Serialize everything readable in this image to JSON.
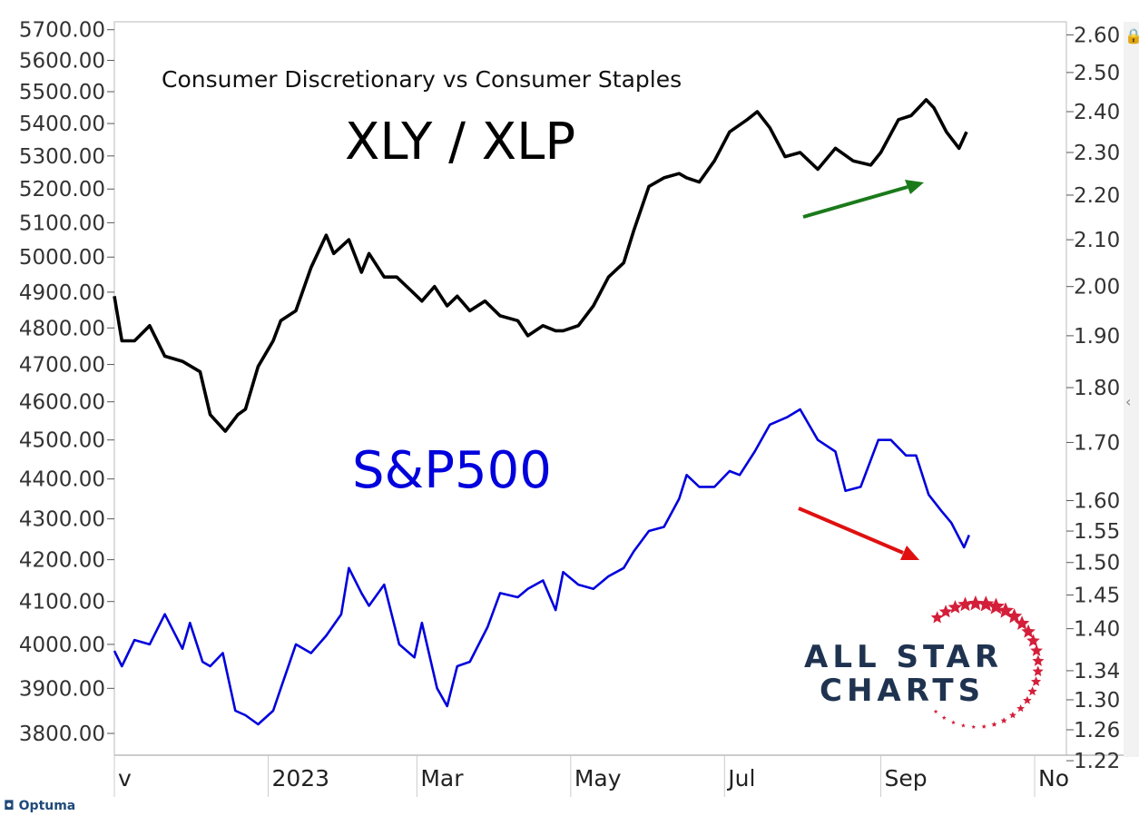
{
  "chart_data": {
    "type": "line",
    "title": "XLY / XLP",
    "subtitle": "Consumer Discretionary vs Consumer Staples",
    "x_ticks": [
      "v",
      "2023",
      "Mar",
      "May",
      "Jul",
      "Sep",
      "No"
    ],
    "xlim": [
      "2022-11-01",
      "2023-11-01"
    ],
    "left_axis": {
      "ticks": [
        "5700.00",
        "5600.00",
        "5500.00",
        "5400.00",
        "5300.00",
        "5200.00",
        "5100.00",
        "5000.00",
        "4900.00",
        "4800.00",
        "4700.00",
        "4600.00",
        "4500.00",
        "4400.00",
        "4300.00",
        "4200.00",
        "4100.00",
        "4000.00",
        "3900.00",
        "3800.00"
      ],
      "ylim": [
        3770,
        5700
      ],
      "scale": "log"
    },
    "right_axis": {
      "ticks": [
        "2.60",
        "2.50",
        "2.40",
        "2.30",
        "2.20",
        "2.10",
        "2.00",
        "1.90",
        "1.80",
        "1.70",
        "1.60",
        "1.55",
        "1.50",
        "1.45",
        "1.40",
        "1.34",
        "1.30",
        "1.26",
        "1.22"
      ],
      "ylim": [
        1.22,
        2.6
      ],
      "scale": "log"
    },
    "series": [
      {
        "name": "XLY / XLP",
        "axis": "right",
        "color": "#000000",
        "x": [
          "2022-11-01",
          "2022-11-04",
          "2022-11-09",
          "2022-11-15",
          "2022-11-21",
          "2022-11-28",
          "2022-12-05",
          "2022-12-09",
          "2022-12-15",
          "2022-12-20",
          "2022-12-23",
          "2022-12-28",
          "2023-01-03",
          "2023-01-06",
          "2023-01-12",
          "2023-01-18",
          "2023-01-24",
          "2023-01-27",
          "2023-02-02",
          "2023-02-07",
          "2023-02-10",
          "2023-02-16",
          "2023-02-21",
          "2023-02-27",
          "2023-03-03",
          "2023-03-08",
          "2023-03-13",
          "2023-03-17",
          "2023-03-22",
          "2023-03-28",
          "2023-04-03",
          "2023-04-10",
          "2023-04-14",
          "2023-04-20",
          "2023-04-25",
          "2023-04-28",
          "2023-05-04",
          "2023-05-10",
          "2023-05-16",
          "2023-05-22",
          "2023-05-26",
          "2023-06-01",
          "2023-06-07",
          "2023-06-13",
          "2023-06-16",
          "2023-06-21",
          "2023-06-27",
          "2023-07-03",
          "2023-07-10",
          "2023-07-14",
          "2023-07-19",
          "2023-07-25",
          "2023-07-31",
          "2023-08-07",
          "2023-08-14",
          "2023-08-21",
          "2023-08-28",
          "2023-09-01",
          "2023-09-08",
          "2023-09-13",
          "2023-09-19",
          "2023-09-22",
          "2023-09-27",
          "2023-10-02",
          "2023-10-05"
        ],
        "y": [
          1.98,
          1.89,
          1.89,
          1.92,
          1.86,
          1.85,
          1.83,
          1.75,
          1.72,
          1.75,
          1.76,
          1.84,
          1.89,
          1.93,
          1.95,
          2.04,
          2.11,
          2.07,
          2.1,
          2.03,
          2.07,
          2.02,
          2.02,
          1.99,
          1.97,
          2.0,
          1.96,
          1.98,
          1.95,
          1.97,
          1.94,
          1.93,
          1.9,
          1.92,
          1.91,
          1.91,
          1.92,
          1.96,
          2.02,
          2.05,
          2.12,
          2.22,
          2.24,
          2.25,
          2.24,
          2.23,
          2.28,
          2.35,
          2.38,
          2.4,
          2.36,
          2.29,
          2.3,
          2.26,
          2.31,
          2.28,
          2.27,
          2.3,
          2.38,
          2.39,
          2.43,
          2.41,
          2.35,
          2.31,
          2.35
        ]
      },
      {
        "name": "S&P500",
        "axis": "left",
        "color": "#0000dd",
        "x": [
          "2022-11-01",
          "2022-11-04",
          "2022-11-09",
          "2022-11-15",
          "2022-11-21",
          "2022-11-28",
          "2022-12-01",
          "2022-12-06",
          "2022-12-09",
          "2022-12-14",
          "2022-12-19",
          "2022-12-23",
          "2022-12-28",
          "2023-01-03",
          "2023-01-06",
          "2023-01-12",
          "2023-01-18",
          "2023-01-24",
          "2023-01-30",
          "2023-02-02",
          "2023-02-07",
          "2023-02-10",
          "2023-02-16",
          "2023-02-22",
          "2023-02-28",
          "2023-03-03",
          "2023-03-09",
          "2023-03-13",
          "2023-03-17",
          "2023-03-22",
          "2023-03-29",
          "2023-04-03",
          "2023-04-10",
          "2023-04-14",
          "2023-04-20",
          "2023-04-25",
          "2023-04-28",
          "2023-05-04",
          "2023-05-10",
          "2023-05-16",
          "2023-05-22",
          "2023-05-26",
          "2023-06-01",
          "2023-06-07",
          "2023-06-13",
          "2023-06-16",
          "2023-06-21",
          "2023-06-27",
          "2023-07-03",
          "2023-07-07",
          "2023-07-13",
          "2023-07-19",
          "2023-07-26",
          "2023-07-31",
          "2023-08-07",
          "2023-08-14",
          "2023-08-18",
          "2023-08-24",
          "2023-08-31",
          "2023-09-05",
          "2023-09-11",
          "2023-09-15",
          "2023-09-20",
          "2023-09-25",
          "2023-09-29",
          "2023-10-04",
          "2023-10-06"
        ],
        "y": [
          3985,
          3950,
          4010,
          4000,
          4070,
          3990,
          4050,
          3960,
          3950,
          3980,
          3850,
          3840,
          3820,
          3850,
          3900,
          4000,
          3980,
          4020,
          4070,
          4180,
          4120,
          4090,
          4140,
          4000,
          3970,
          4050,
          3900,
          3860,
          3950,
          3960,
          4040,
          4120,
          4110,
          4130,
          4150,
          4080,
          4170,
          4140,
          4130,
          4160,
          4180,
          4220,
          4270,
          4280,
          4350,
          4410,
          4380,
          4380,
          4420,
          4410,
          4470,
          4540,
          4560,
          4580,
          4500,
          4470,
          4370,
          4380,
          4500,
          4500,
          4460,
          4460,
          4360,
          4320,
          4290,
          4230,
          4260
        ]
      }
    ],
    "annotations": {
      "big_label_1": "XLY / XLP",
      "big_label_2": "S&P500",
      "green_arrow": "up",
      "red_arrow": "down"
    },
    "grid": false,
    "legend": "none",
    "logo_line1": "ALL STAR",
    "logo_line2": "CHARTS",
    "vendor": "Optuma"
  }
}
